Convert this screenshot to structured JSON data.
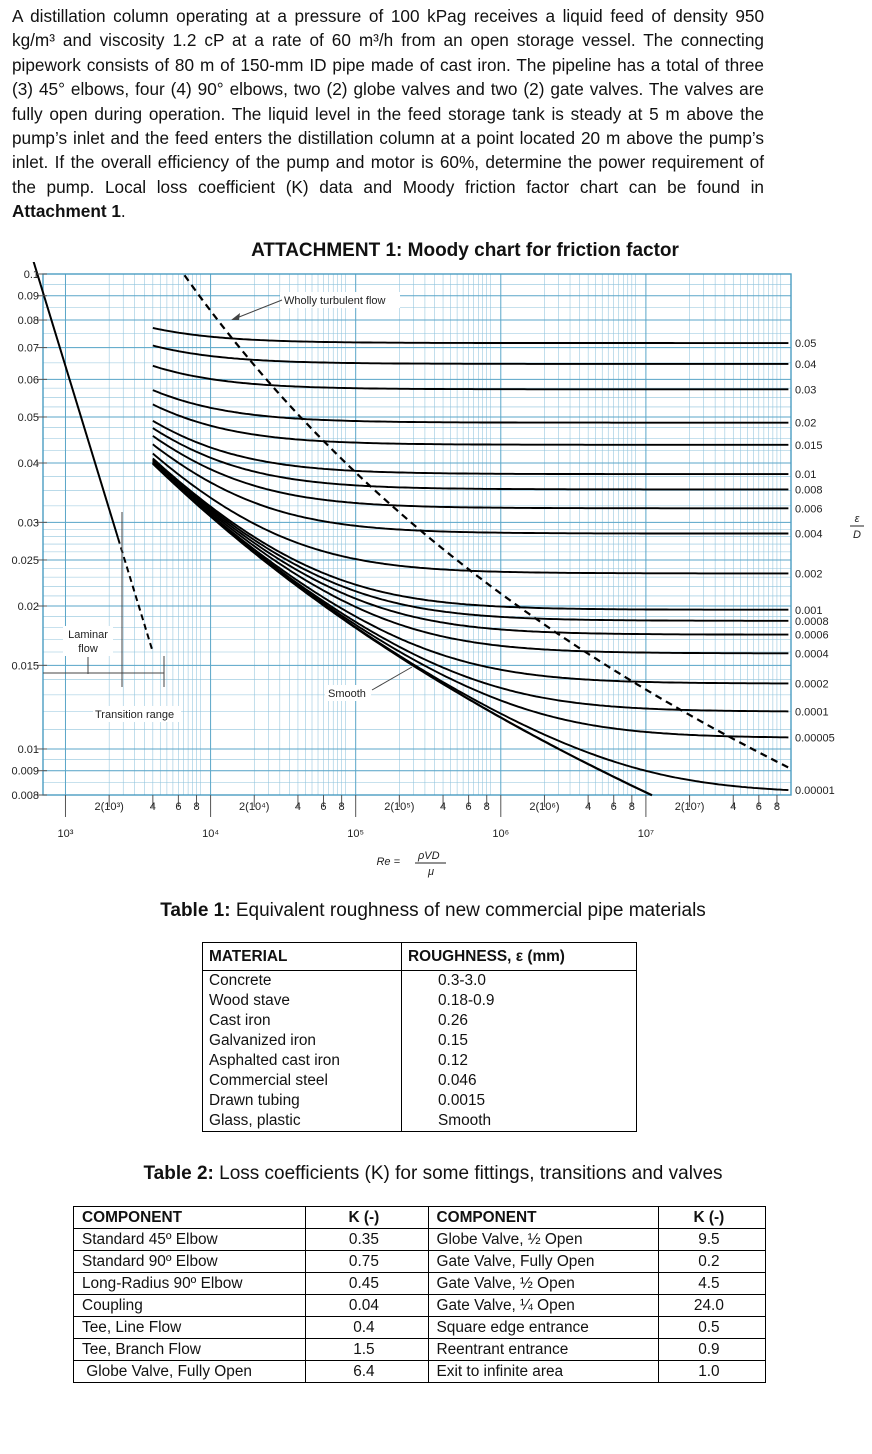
{
  "problem": {
    "intro": "A distillation column operating at a pressure of 100 kPag receives a liquid feed of density 950 kg/m³ and viscosity 1.2 cP at a rate of 60 m³/h from an open storage vessel. The connecting pipework consists of 80 m of 150-mm ID pipe made of cast iron. The pipeline has a total of three (3) 45° elbows, four (4) 90° elbows, two (2) globe valves and two (2) gate valves. The valves are fully open during operation. The liquid level in the feed storage tank is steady at 5 m above the pump’s inlet and the feed enters the distillation column at a point located 20 m above the pump’s inlet. If the overall efficiency of the pump and motor is 60%, determine the power requirement of the pump. Local loss coefficient (K) data and Moody friction factor chart can be found in ",
    "attachment_ref": "Attachment 1",
    "end": "."
  },
  "attachment_title": "ATTACHMENT 1: Moody chart for friction factor",
  "chart_data": {
    "type": "line",
    "title": "ATTACHMENT 1: Moody chart for friction factor",
    "x_scale": "log",
    "y_scale": "log",
    "xlim": [
      700,
      100000000
    ],
    "ylim": [
      0.008,
      0.1
    ],
    "grid": true,
    "y_ticks": [
      "0.1",
      "0.09",
      "0.08",
      "0.07",
      "0.06",
      "0.05",
      "0.04",
      "0.03",
      "0.025",
      "0.02",
      "0.015",
      "0.01",
      "0.009",
      "0.008"
    ],
    "x_major_ticks": [
      "10³",
      "10⁴",
      "10⁵",
      "10⁶",
      "10⁷"
    ],
    "x_minor_ticks": [
      "2(10³)",
      "4",
      "6",
      "8",
      "2(10⁴)",
      "4",
      "6",
      "8",
      "2(10⁵)",
      "4",
      "6",
      "8",
      "2(10⁶)",
      "4",
      "6",
      "8",
      "2(10⁷)",
      "4",
      "6",
      "8"
    ],
    "xlabel_numerator": "ρVD",
    "xlabel_denominator": "μ",
    "xlabel_prefix": "Re =",
    "right_axis_label_numerator": "ε",
    "right_axis_label_denominator": "D",
    "relative_roughness_labels": [
      "0.05",
      "0.04",
      "0.03",
      "0.02",
      "0.015",
      "0.01",
      "0.008",
      "0.006",
      "0.004",
      "0.002",
      "0.001",
      "0.0008",
      "0.0006",
      "0.0004",
      "0.0002",
      "0.0001",
      "0.00005",
      "0.00001"
    ],
    "relative_roughness": [
      0.05,
      0.04,
      0.03,
      0.02,
      0.015,
      0.01,
      0.008,
      0.006,
      0.004,
      0.002,
      0.001,
      0.0008,
      0.0006,
      0.0004,
      0.0002,
      0.0001,
      5e-05,
      1e-05
    ],
    "annotations": [
      "Wholly turbulent flow",
      "Laminar flow",
      "Transition range",
      "Smooth"
    ],
    "laminar": {
      "equation": "f = 64/Re",
      "re_range": [
        600,
        4000
      ]
    },
    "turbulent_start_re": 4000,
    "smooth_re_range": [
      4000,
      30000000
    ]
  },
  "table1": {
    "caption_bold": "Table 1:",
    "caption_rest": " Equivalent roughness of new commercial pipe materials",
    "col_material": "MATERIAL",
    "col_roughness": "ROUGHNESS, ε (mm)",
    "rows": [
      [
        "Concrete",
        "0.3-3.0"
      ],
      [
        "Wood stave",
        "0.18-0.9"
      ],
      [
        "Cast iron",
        "0.26"
      ],
      [
        "Galvanized iron",
        "0.15"
      ],
      [
        "Asphalted cast iron",
        "0.12"
      ],
      [
        "Commercial steel",
        "0.046"
      ],
      [
        "Drawn tubing",
        "0.0015"
      ],
      [
        "Glass, plastic",
        "Smooth"
      ]
    ]
  },
  "table2": {
    "caption_bold": "Table 2:",
    "caption_rest": " Loss coefficients (K) for some fittings, transitions and valves",
    "headers": [
      "COMPONENT",
      "K (-)",
      "COMPONENT",
      "K (-)"
    ],
    "rows": [
      [
        "Standard 45º Elbow",
        "0.35",
        "Globe Valve, ½ Open",
        "9.5"
      ],
      [
        "Standard 90º Elbow",
        "0.75",
        "Gate Valve, Fully Open",
        "0.2"
      ],
      [
        "Long-Radius 90º Elbow",
        "0.45",
        "Gate Valve, ½  Open",
        "4.5"
      ],
      [
        "Coupling",
        "0.04",
        "Gate Valve, ¼  Open",
        "24.0"
      ],
      [
        "Tee, Line Flow",
        "0.4",
        "Square edge entrance",
        "0.5"
      ],
      [
        "Tee, Branch Flow",
        "1.5",
        "Reentrant entrance",
        "0.9"
      ],
      [
        " Globe Valve, Fully Open",
        "6.4",
        "Exit to infinite area",
        "1.0"
      ]
    ]
  }
}
